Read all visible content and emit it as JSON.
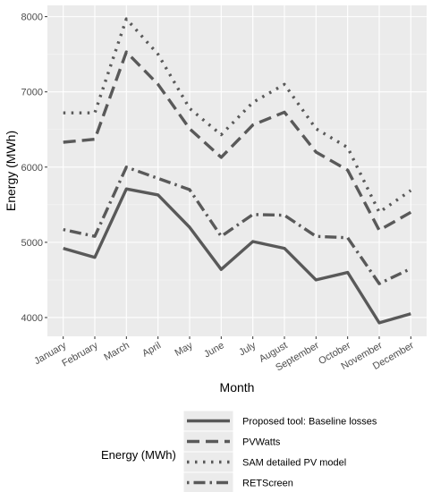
{
  "chart_data": {
    "type": "line",
    "title": "",
    "xlabel": "Month",
    "ylabel": "Energy (MWh)",
    "ylim": [
      3750,
      8150
    ],
    "yticks": [
      4000,
      5000,
      6000,
      7000,
      8000
    ],
    "grid": true,
    "legend_position": "bottom",
    "legend_title": "Energy (MWh)",
    "categories": [
      "January",
      "February",
      "March",
      "April",
      "May",
      "June",
      "July",
      "August",
      "September",
      "October",
      "November",
      "December"
    ],
    "series": [
      {
        "name": "Proposed tool: Baseline losses",
        "style": "solid",
        "color": "#595959",
        "values": [
          4920,
          4800,
          5710,
          5630,
          5200,
          4640,
          5010,
          4920,
          4500,
          4600,
          3930,
          4050
        ]
      },
      {
        "name": "PVWatts",
        "style": "dashed",
        "color": "#595959",
        "values": [
          6330,
          6370,
          7530,
          7100,
          6510,
          6130,
          6560,
          6730,
          6200,
          5960,
          5160,
          5400
        ]
      },
      {
        "name": "SAM detailed PV model",
        "style": "dotted",
        "color": "#595959",
        "values": [
          6720,
          6720,
          7970,
          7500,
          6780,
          6430,
          6860,
          7100,
          6510,
          6260,
          5400,
          5690
        ]
      },
      {
        "name": "RETScreen",
        "style": "dotdash",
        "color": "#595959",
        "values": [
          5170,
          5080,
          6000,
          5850,
          5700,
          5080,
          5370,
          5360,
          5080,
          5060,
          4450,
          4650
        ]
      }
    ]
  }
}
